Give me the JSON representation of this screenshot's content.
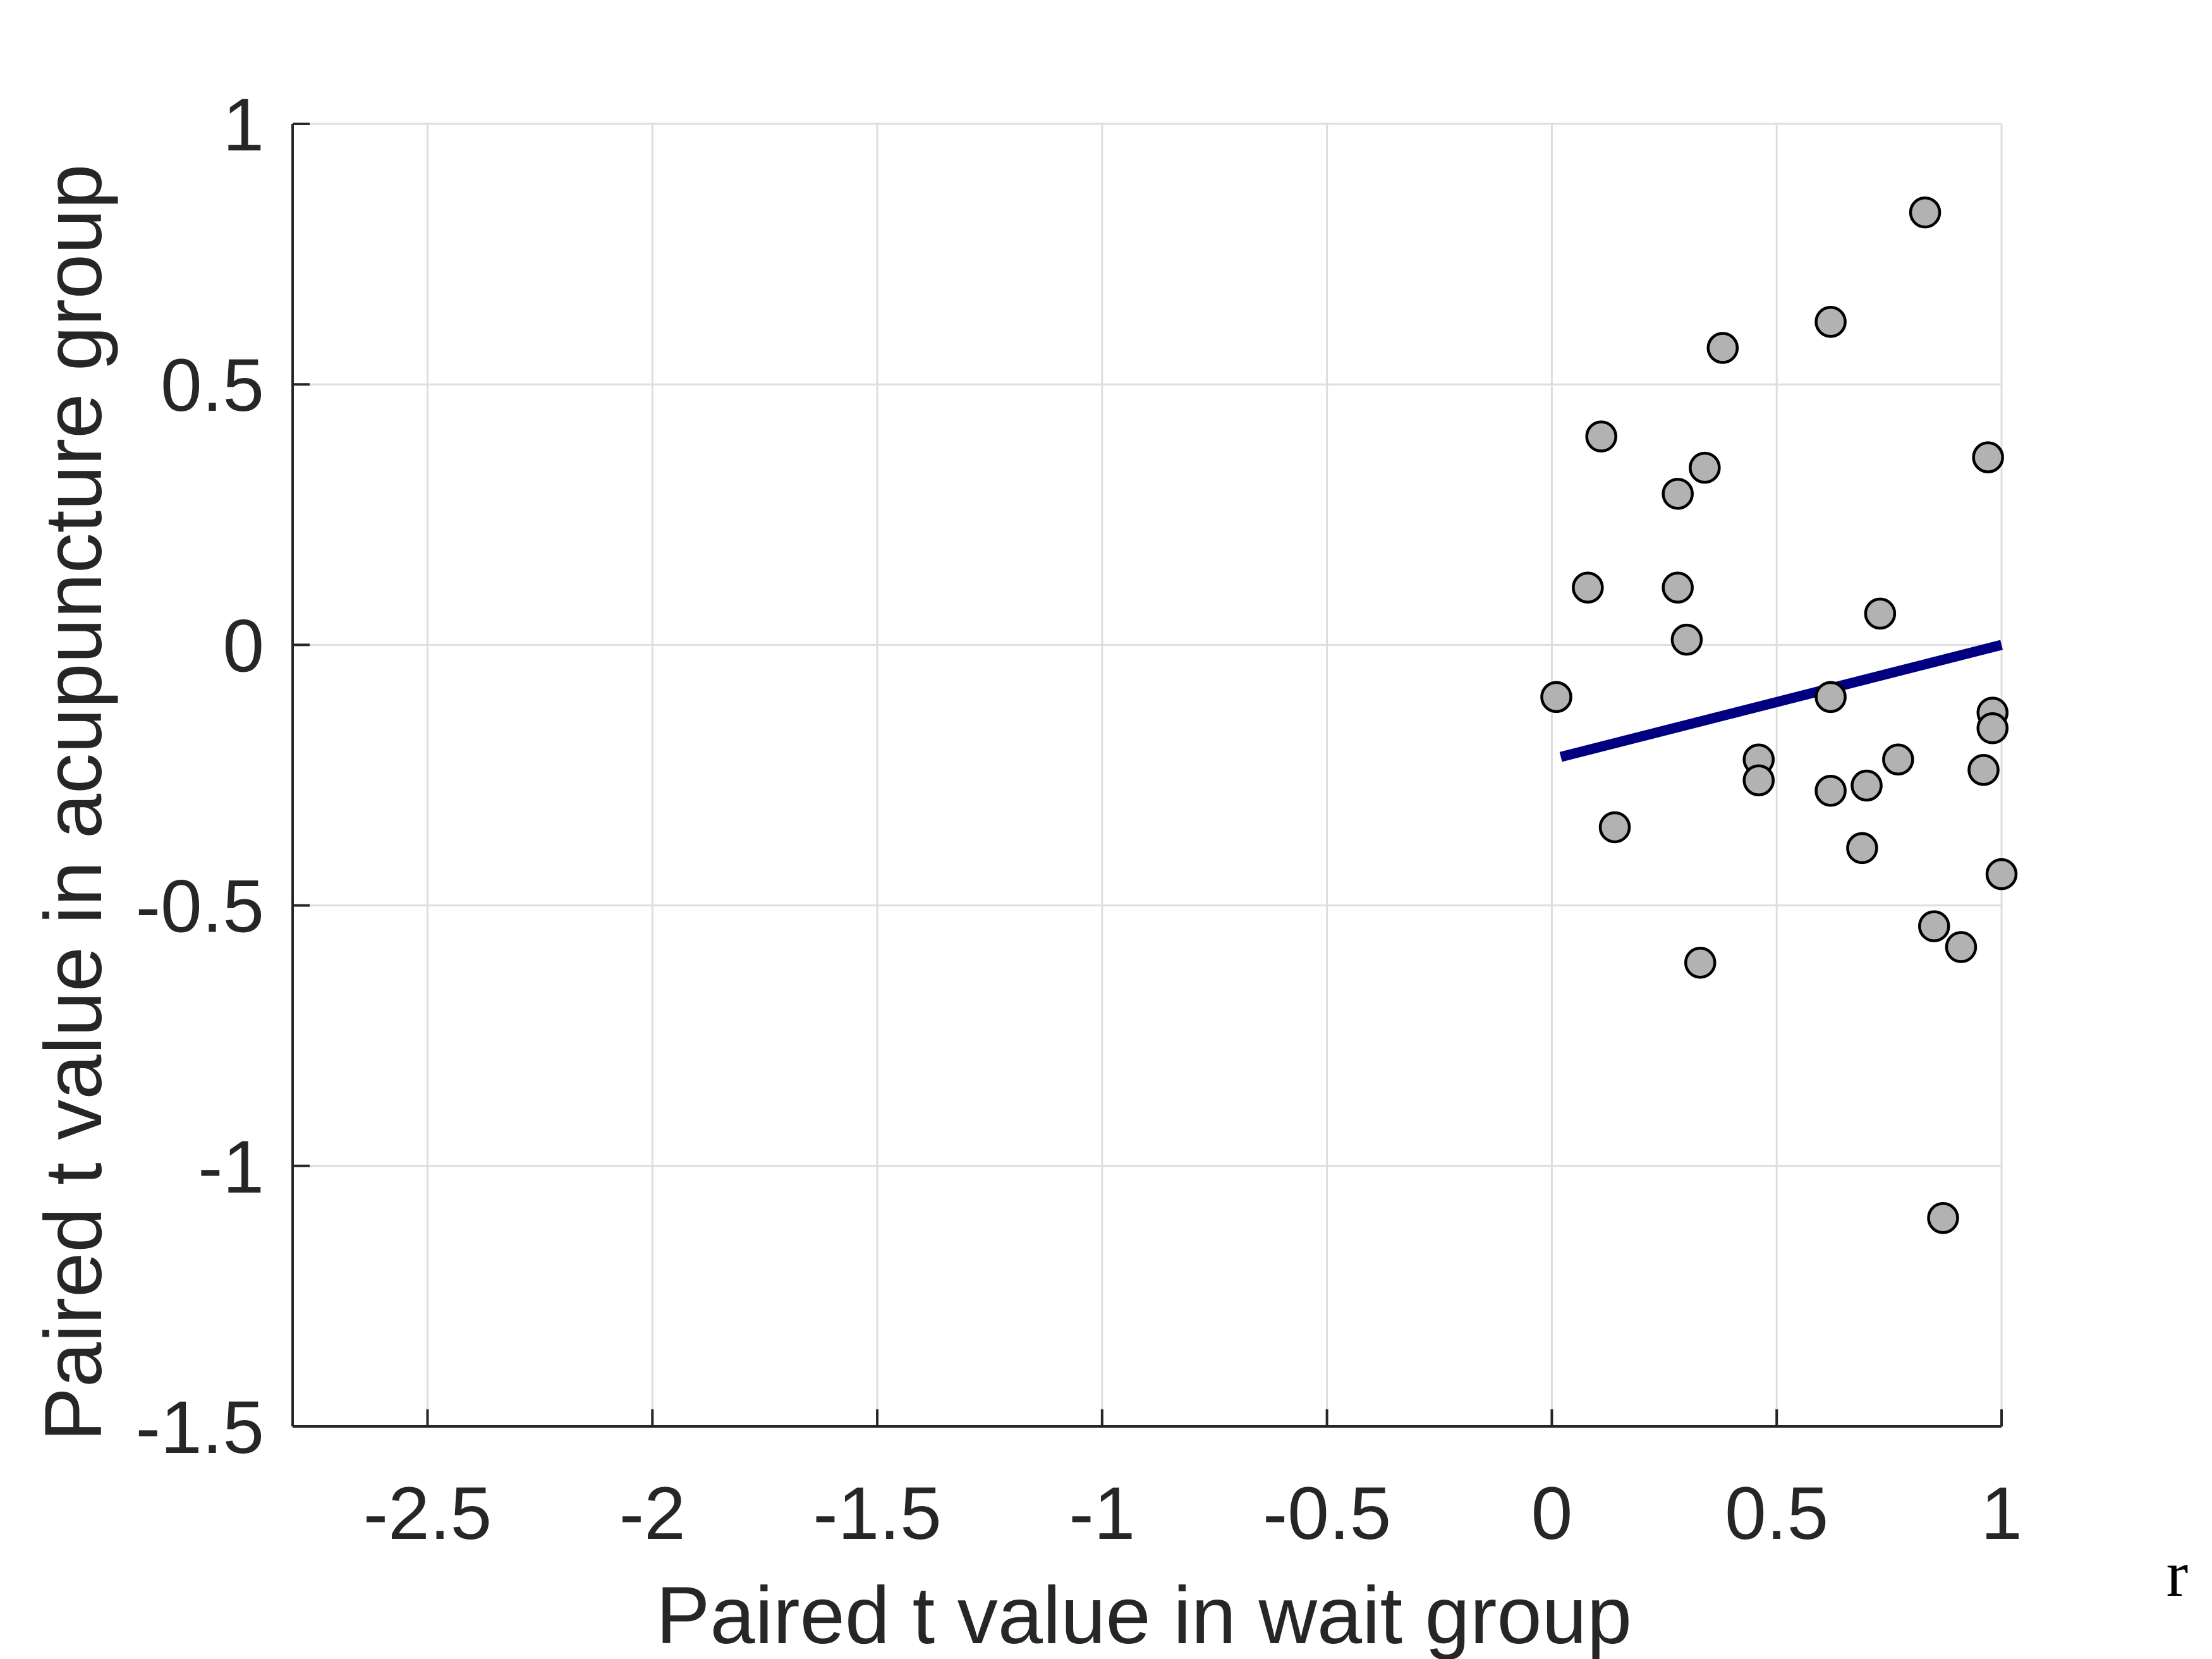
{
  "chart_data": {
    "type": "scatter",
    "xlabel": "Paired t value in wait group",
    "ylabel": "Paired t value in acupuncture group",
    "corner_label": "r",
    "xlim": [
      -2.8,
      1
    ],
    "ylim": [
      -1.5,
      1
    ],
    "xticks": [
      -2.5,
      -2,
      -1.5,
      -1,
      -0.5,
      0,
      0.5,
      1
    ],
    "yticks": [
      -1.5,
      -1,
      -0.5,
      0,
      0.5,
      1
    ],
    "xtick_labels": [
      "-2.5",
      "-2",
      "-1.5",
      "-1",
      "-0.5",
      "0",
      "0.5",
      "1"
    ],
    "ytick_labels": [
      "-1.5",
      "-1",
      "-0.5",
      "0",
      "0.5",
      "1"
    ],
    "grid": true,
    "colors": {
      "marker_fill": "#b2b2b2",
      "marker_edge": "#000000",
      "fit_line": "#000080",
      "grid": "#dedede",
      "axis": "#262626"
    },
    "series": [
      {
        "type": "scatter",
        "points": [
          {
            "x": 0.83,
            "y": 0.83
          },
          {
            "x": 0.62,
            "y": 0.62
          },
          {
            "x": 0.38,
            "y": 0.57
          },
          {
            "x": 0.11,
            "y": 0.4
          },
          {
            "x": 0.97,
            "y": 0.36
          },
          {
            "x": 0.34,
            "y": 0.34
          },
          {
            "x": 0.28,
            "y": 0.29
          },
          {
            "x": 0.08,
            "y": 0.11
          },
          {
            "x": 0.28,
            "y": 0.11
          },
          {
            "x": 0.73,
            "y": 0.06
          },
          {
            "x": 0.3,
            "y": 0.01
          },
          {
            "x": 0.01,
            "y": -0.1
          },
          {
            "x": 0.62,
            "y": -0.1
          },
          {
            "x": 0.98,
            "y": -0.13
          },
          {
            "x": 0.98,
            "y": -0.16
          },
          {
            "x": 0.46,
            "y": -0.22
          },
          {
            "x": 0.77,
            "y": -0.22
          },
          {
            "x": 0.96,
            "y": -0.24
          },
          {
            "x": 0.46,
            "y": -0.26
          },
          {
            "x": 0.7,
            "y": -0.27
          },
          {
            "x": 0.62,
            "y": -0.28
          },
          {
            "x": 0.14,
            "y": -0.35
          },
          {
            "x": 0.69,
            "y": -0.39
          },
          {
            "x": 1.0,
            "y": -0.44
          },
          {
            "x": 0.85,
            "y": -0.54
          },
          {
            "x": 0.91,
            "y": -0.58
          },
          {
            "x": 0.33,
            "y": -0.61
          },
          {
            "x": 0.87,
            "y": -1.1
          }
        ]
      },
      {
        "type": "line",
        "points": [
          {
            "x": 0.02,
            "y": -0.215
          },
          {
            "x": 1.0,
            "y": 0.0
          }
        ]
      }
    ]
  }
}
